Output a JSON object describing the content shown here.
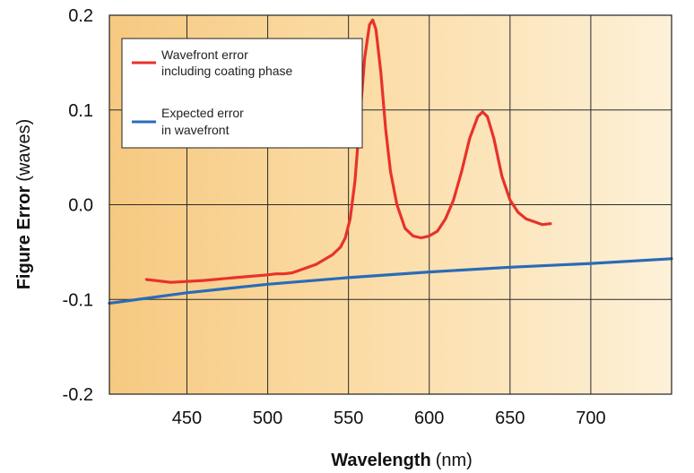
{
  "chart_data": {
    "type": "line",
    "xlabel_bold": "Wavelength",
    "xlabel_unit": "(nm)",
    "ylabel_bold": "Figure Error",
    "ylabel_unit": "(waves)",
    "xlim": [
      402,
      750
    ],
    "ylim": [
      -0.2,
      0.2
    ],
    "xticks": [
      450,
      500,
      550,
      600,
      650,
      700
    ],
    "xtick_labels": [
      "450",
      "500",
      "550",
      "600",
      "650",
      "700"
    ],
    "yticks": [
      0.2,
      0.1,
      0.0,
      -0.1,
      -0.2
    ],
    "ytick_labels": [
      "0.2",
      "0.1",
      "0.0",
      "-0.1",
      "-0.2"
    ],
    "grid": true,
    "background": "warm orange-to-cream gradient",
    "legend_position": "top-left",
    "series": [
      {
        "name": "Wavefront error\nincluding coating phase",
        "color": "#e8322a",
        "x": [
          425,
          440,
          460,
          480,
          500,
          505,
          510,
          515,
          520,
          530,
          540,
          545,
          548,
          551,
          554,
          557,
          560,
          563,
          565,
          567,
          570,
          573,
          576,
          580,
          585,
          590,
          595,
          600,
          605,
          610,
          615,
          620,
          625,
          630,
          633,
          636,
          640,
          645,
          650,
          655,
          660,
          665,
          670,
          675
        ],
        "y": [
          -0.079,
          -0.082,
          -0.08,
          -0.077,
          -0.074,
          -0.073,
          -0.073,
          -0.072,
          -0.069,
          -0.063,
          -0.053,
          -0.045,
          -0.035,
          -0.015,
          0.025,
          0.09,
          0.155,
          0.19,
          0.195,
          0.185,
          0.14,
          0.08,
          0.035,
          0.0,
          -0.025,
          -0.033,
          -0.035,
          -0.033,
          -0.028,
          -0.015,
          0.005,
          0.035,
          0.07,
          0.093,
          0.098,
          0.093,
          0.07,
          0.03,
          0.005,
          -0.008,
          -0.015,
          -0.018,
          -0.021,
          -0.02
        ]
      },
      {
        "name": "Expected error\nin wavefront",
        "color": "#2a6bb8",
        "x": [
          402,
          450,
          500,
          550,
          600,
          650,
          700,
          750
        ],
        "y": [
          -0.104,
          -0.093,
          -0.084,
          -0.077,
          -0.071,
          -0.066,
          -0.062,
          -0.057
        ]
      }
    ]
  }
}
